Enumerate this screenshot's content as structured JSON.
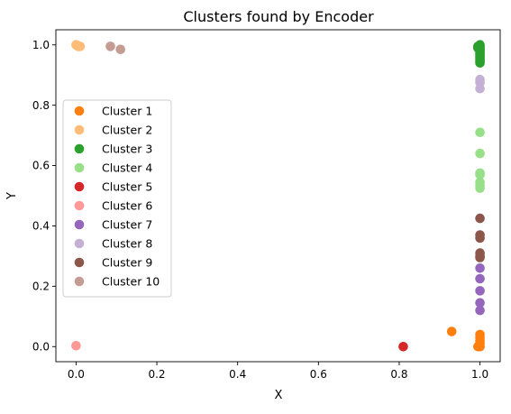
{
  "chart_data": {
    "type": "scatter",
    "title": "Clusters found by Encoder",
    "xlabel": "X",
    "ylabel": "Y",
    "xlim": [
      -0.05,
      1.05
    ],
    "ylim": [
      -0.05,
      1.05
    ],
    "xticks": [
      0.0,
      0.2,
      0.4,
      0.6,
      0.8,
      1.0
    ],
    "yticks": [
      0.0,
      0.2,
      0.4,
      0.6,
      0.8,
      1.0
    ],
    "xtick_labels": [
      "0.0",
      "0.2",
      "0.4",
      "0.6",
      "0.8",
      "1.0"
    ],
    "ytick_labels": [
      "0.0",
      "0.2",
      "0.4",
      "0.6",
      "0.8",
      "1.0"
    ],
    "grid": false,
    "legend_position": "center-left",
    "series": [
      {
        "name": "Cluster 1",
        "color": "#ff7f0e",
        "points": [
          [
            0.93,
            0.05
          ],
          [
            1.0,
            0.04
          ],
          [
            1.0,
            0.03
          ],
          [
            1.0,
            0.02
          ],
          [
            1.0,
            0.01
          ],
          [
            1.0,
            0.0
          ],
          [
            0.995,
            0.0
          ]
        ]
      },
      {
        "name": "Cluster 2",
        "color": "#ffbb78",
        "points": [
          [
            0.0,
            1.0
          ],
          [
            0.005,
            0.995
          ],
          [
            0.01,
            0.995
          ],
          [
            0.003,
            0.998
          ]
        ]
      },
      {
        "name": "Cluster 3",
        "color": "#2ca02c",
        "points": [
          [
            1.0,
            1.0
          ],
          [
            1.0,
            0.995
          ],
          [
            1.0,
            0.99
          ],
          [
            1.0,
            0.985
          ],
          [
            1.0,
            0.98
          ],
          [
            1.0,
            0.975
          ],
          [
            1.0,
            0.97
          ],
          [
            1.0,
            0.965
          ],
          [
            1.0,
            0.96
          ],
          [
            1.0,
            0.955
          ],
          [
            1.0,
            0.95
          ],
          [
            1.0,
            0.945
          ],
          [
            1.0,
            0.94
          ],
          [
            0.995,
            0.995
          ],
          [
            0.995,
            0.99
          ]
        ]
      },
      {
        "name": "Cluster 4",
        "color": "#98df8a",
        "points": [
          [
            1.0,
            0.71
          ],
          [
            1.0,
            0.64
          ],
          [
            1.0,
            0.575
          ],
          [
            1.0,
            0.57
          ],
          [
            1.0,
            0.545
          ],
          [
            1.0,
            0.535
          ],
          [
            1.0,
            0.525
          ]
        ]
      },
      {
        "name": "Cluster 5",
        "color": "#d62728",
        "points": [
          [
            0.81,
            0.0
          ]
        ]
      },
      {
        "name": "Cluster 6",
        "color": "#ff9896",
        "points": [
          [
            0.0,
            0.003
          ]
        ]
      },
      {
        "name": "Cluster 7",
        "color": "#9467bd",
        "points": [
          [
            1.0,
            0.26
          ],
          [
            1.0,
            0.225
          ],
          [
            1.0,
            0.185
          ],
          [
            1.0,
            0.145
          ],
          [
            1.0,
            0.12
          ]
        ]
      },
      {
        "name": "Cluster 8",
        "color": "#c5b0d5",
        "points": [
          [
            1.0,
            0.885
          ],
          [
            1.0,
            0.875
          ],
          [
            1.0,
            0.855
          ]
        ]
      },
      {
        "name": "Cluster 9",
        "color": "#8c564b",
        "points": [
          [
            1.0,
            0.425
          ],
          [
            1.0,
            0.37
          ],
          [
            1.0,
            0.36
          ],
          [
            1.0,
            0.31
          ],
          [
            1.0,
            0.3
          ],
          [
            1.0,
            0.295
          ]
        ]
      },
      {
        "name": "Cluster 10",
        "color": "#c49c94",
        "points": [
          [
            0.085,
            0.995
          ],
          [
            0.11,
            0.985
          ]
        ]
      }
    ]
  }
}
